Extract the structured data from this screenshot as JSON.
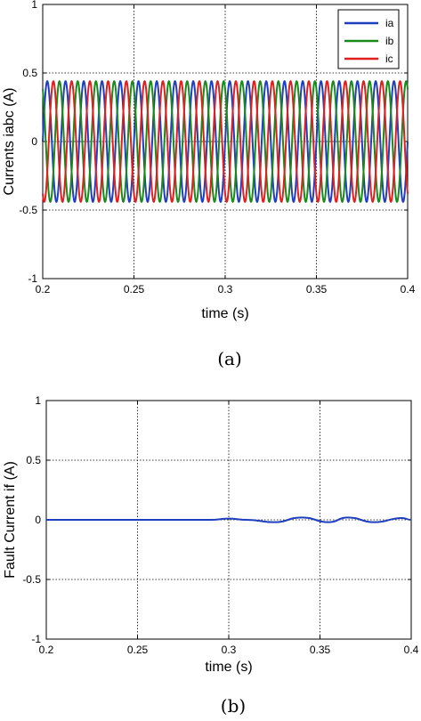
{
  "chart_data": [
    {
      "type": "line",
      "caption": "(a)",
      "xlabel": "time (s)",
      "ylabel": "Currents iabc (A)",
      "xlim": [
        0.2,
        0.4
      ],
      "ylim": [
        -1,
        1
      ],
      "xticks": [
        "0.2",
        "0.25",
        "0.3",
        "0.35",
        "0.4"
      ],
      "yticks": [
        "-1",
        "-0.5",
        "0",
        "0.5",
        "1"
      ],
      "grid": true,
      "legend_position": "top-right",
      "waveform": {
        "kind": "three-phase sinusoid",
        "amplitude": 0.44,
        "frequency_hz": 100,
        "phase_shift_deg": 120
      },
      "series": [
        {
          "name": "ia",
          "color": "#1f3fbf",
          "phase_deg": 0
        },
        {
          "name": "ib",
          "color": "#1a8a1a",
          "phase_deg": 120
        },
        {
          "name": "ic",
          "color": "#e02020",
          "phase_deg": -120
        }
      ]
    },
    {
      "type": "line",
      "caption": "(b)",
      "xlabel": "time (s)",
      "ylabel": "Fault Current if (A)",
      "xlim": [
        0.2,
        0.4
      ],
      "ylim": [
        -1,
        1
      ],
      "xticks": [
        "0.2",
        "0.25",
        "0.3",
        "0.35",
        "0.4"
      ],
      "yticks": [
        "-1",
        "-0.5",
        "0",
        "0.5",
        "1"
      ],
      "grid": true,
      "series": [
        {
          "color": "#1f3fbf",
          "x": [
            0.2,
            0.25,
            0.29,
            0.3,
            0.31,
            0.325,
            0.34,
            0.355,
            0.365,
            0.38,
            0.395,
            0.4
          ],
          "y": [
            0.0,
            0.0,
            0.0,
            0.01,
            0.0,
            -0.02,
            0.02,
            -0.02,
            0.02,
            -0.02,
            0.015,
            0.0
          ]
        }
      ]
    }
  ]
}
